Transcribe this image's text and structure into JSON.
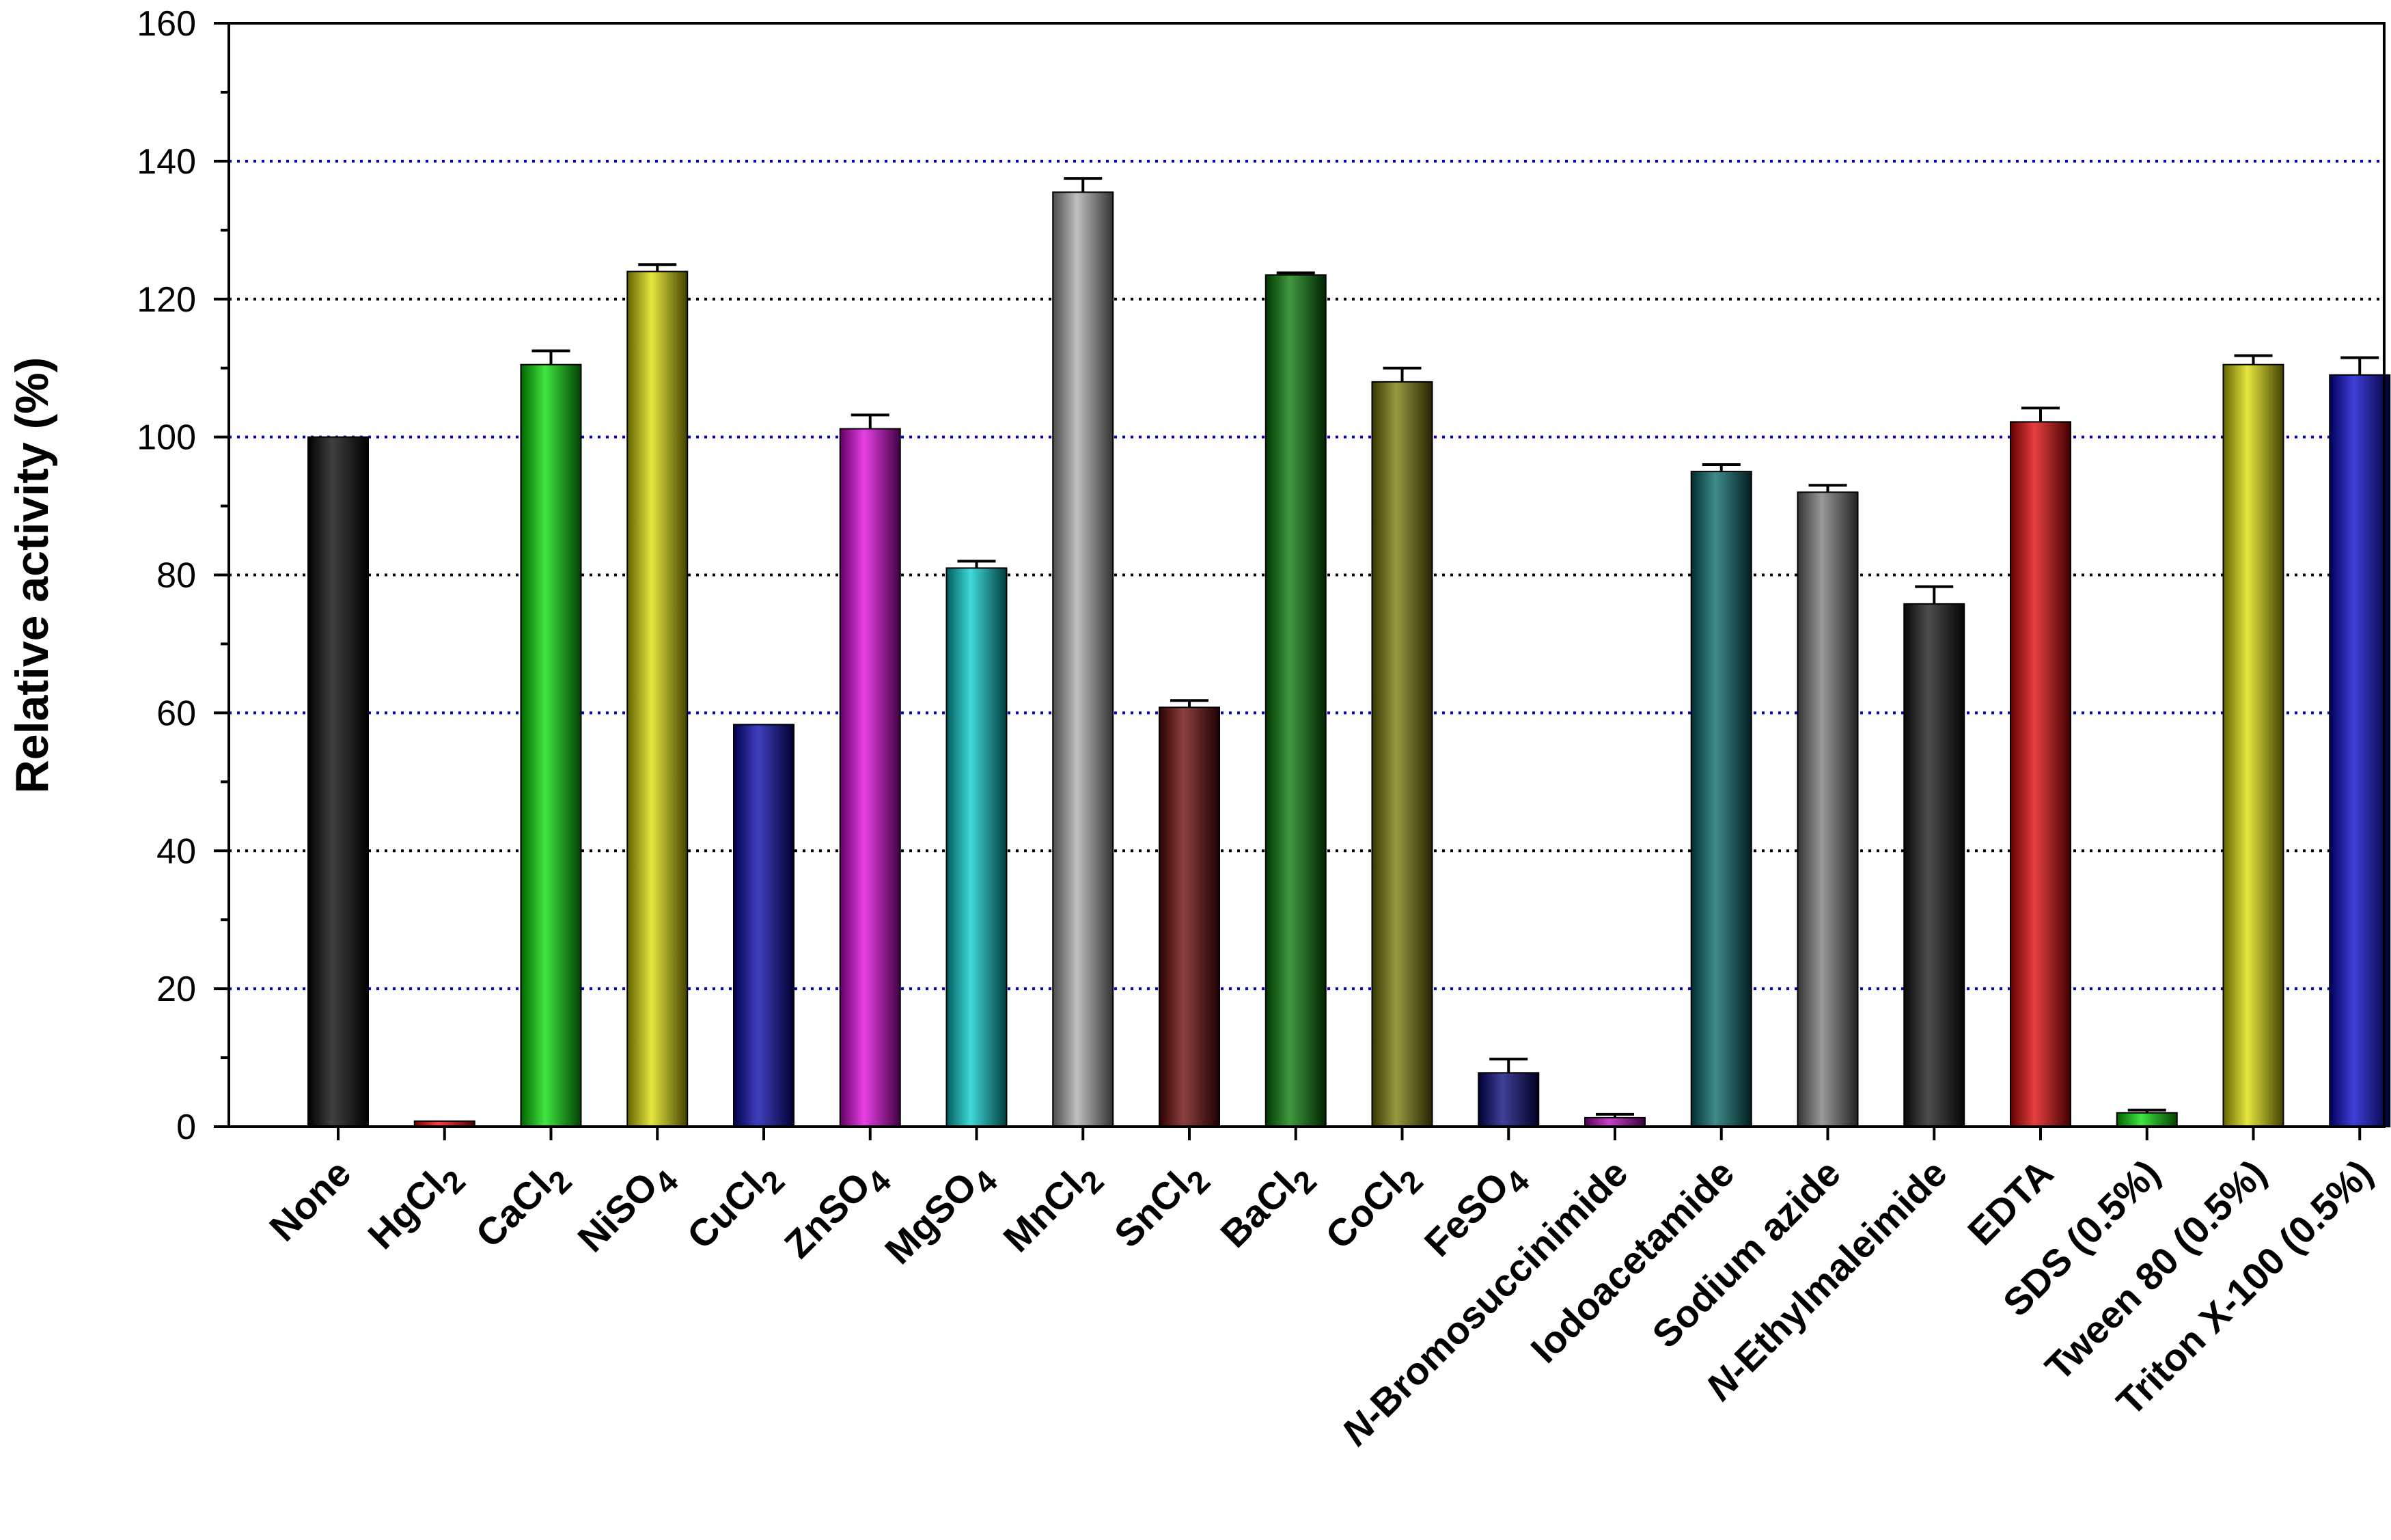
{
  "chart_data": {
    "type": "bar",
    "title": "",
    "xlabel": "",
    "ylabel": "Relative activity (%)",
    "ylim": [
      0,
      160
    ],
    "yticks": [
      0,
      20,
      40,
      60,
      80,
      100,
      120,
      140,
      160
    ],
    "grid": "dotted horizontal at 20, 40, 60, 80, 100, 120, 140 (alternating blue and black)",
    "grid_colors": [
      "#0000cc",
      "#000000"
    ],
    "categories": [
      {
        "label": "None",
        "sub": ""
      },
      {
        "label": "HgCl",
        "sub": "2"
      },
      {
        "label": "CaCl",
        "sub": "2"
      },
      {
        "label": "NiSO",
        "sub": "4"
      },
      {
        "label": "CuCl",
        "sub": "2"
      },
      {
        "label": "ZnSO",
        "sub": "4"
      },
      {
        "label": "MgSO",
        "sub": "4"
      },
      {
        "label": "MnCl",
        "sub": "2"
      },
      {
        "label": "SnCl",
        "sub": "2"
      },
      {
        "label": "BaCl",
        "sub": "2"
      },
      {
        "label": "CoCl",
        "sub": "2"
      },
      {
        "label": "FeSO",
        "sub": "4"
      },
      {
        "label": "N-Bromosuccinimide",
        "sub": ""
      },
      {
        "label": "Iodoacetamide",
        "sub": ""
      },
      {
        "label": "Sodium azide",
        "sub": ""
      },
      {
        "label": "N-Ethylmaleimide",
        "sub": ""
      },
      {
        "label": "EDTA",
        "sub": ""
      },
      {
        "label": "SDS (0.5%)",
        "sub": ""
      },
      {
        "label": "Tween 80 (0.5%)",
        "sub": ""
      },
      {
        "label": "Triton X-100 (0.5%)",
        "sub": ""
      }
    ],
    "values": [
      100,
      0.8,
      110.5,
      124,
      58.3,
      101.2,
      81,
      135.5,
      60.8,
      123.5,
      108,
      7.8,
      1.3,
      95,
      92,
      75.8,
      102.2,
      2,
      110.5,
      109
    ],
    "errors": [
      0,
      0,
      2,
      1,
      0,
      2,
      1,
      2,
      1,
      0.3,
      2,
      2,
      0.5,
      1,
      1,
      2.5,
      2,
      0.4,
      1.3,
      2.5
    ],
    "colors": [
      "#000000",
      "#ff0000",
      "#00dd00",
      "#dddd00",
      "#0000aa",
      "#dd00dd",
      "#00cccc",
      "#aaaaaa",
      "#660000",
      "#007700",
      "#777700",
      "#000077",
      "#bb00bb",
      "#006666",
      "#777777",
      "#111111",
      "#dd0000",
      "#00dd00",
      "#dddd00",
      "#0000cc"
    ]
  }
}
